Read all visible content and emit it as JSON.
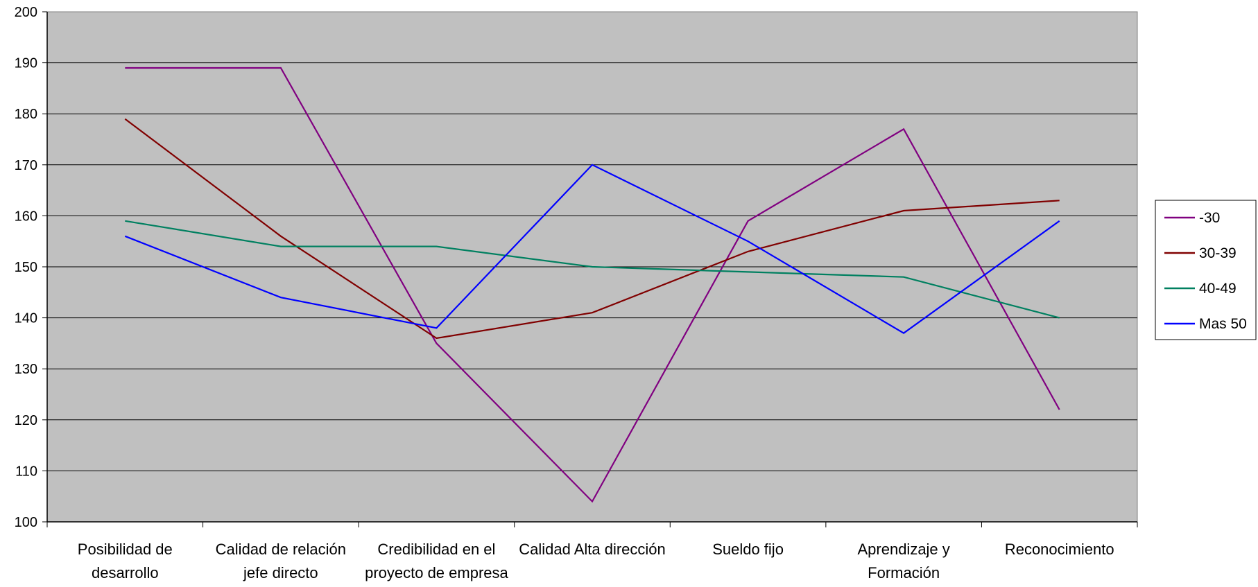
{
  "chart_data": {
    "type": "line",
    "title": "",
    "xlabel": "",
    "ylabel": "",
    "categories": [
      [
        "Posibilidad de",
        "desarrollo"
      ],
      [
        "Calidad de relación",
        "jefe directo"
      ],
      [
        "Credibilidad en el",
        "proyecto de empresa"
      ],
      [
        "Calidad Alta dirección"
      ],
      [
        "Sueldo fijo"
      ],
      [
        "Aprendizaje y",
        "Formación"
      ],
      [
        "Reconocimiento"
      ]
    ],
    "ylim": [
      100,
      200
    ],
    "yticks": [
      "100",
      "110",
      "120",
      "130",
      "140",
      "150",
      "160",
      "170",
      "180",
      "190",
      "200"
    ],
    "grid": true,
    "background": "#c0c0c0",
    "legend_position": "right",
    "series": [
      {
        "name": "-30",
        "color": "#800080",
        "values": [
          189,
          189,
          135,
          104,
          159,
          177,
          122
        ]
      },
      {
        "name": "30-39",
        "color": "#800000",
        "values": [
          179,
          156,
          136,
          141,
          153,
          161,
          163
        ]
      },
      {
        "name": "40-49",
        "color": "#008060",
        "values": [
          159,
          154,
          154,
          150,
          149,
          148,
          140
        ]
      },
      {
        "name": "Mas 50",
        "color": "#0000ff",
        "values": [
          156,
          144,
          138,
          170,
          155,
          137,
          159
        ]
      }
    ]
  }
}
